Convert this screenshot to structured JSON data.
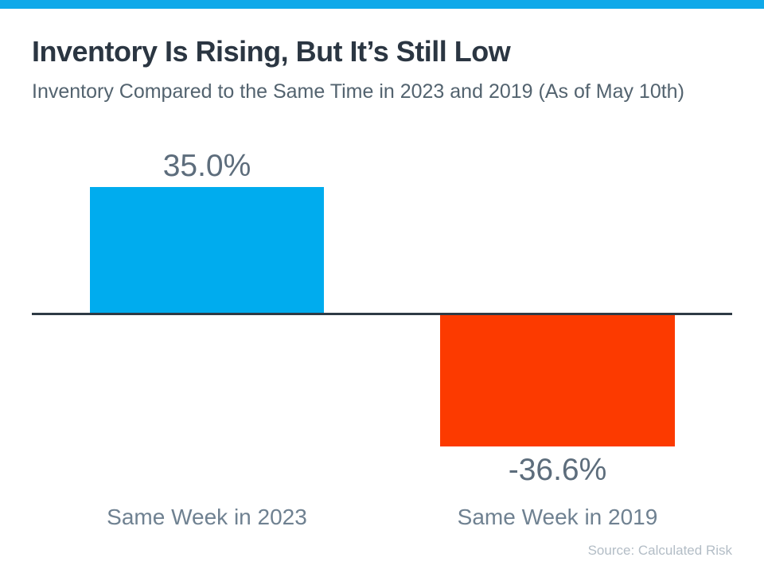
{
  "slide": {
    "accent_color": "#0fa9e9"
  },
  "chart_data": {
    "type": "bar",
    "title": "Inventory Is Rising, But It’s Still Low",
    "subtitle": "Inventory Compared to the Same Time in 2023 and 2019 (As of May 10th)",
    "categories": [
      "Same Week in 2023",
      "Same Week in 2019"
    ],
    "values": [
      35.0,
      -36.6
    ],
    "value_labels": [
      "35.0%",
      "-36.6%"
    ],
    "bar_colors": [
      "#00acee",
      "#fc3a00"
    ],
    "baseline_value": 0,
    "baseline_color": "#2e3a45",
    "ylim": [
      -40,
      40
    ],
    "grid": false,
    "legend": false,
    "source": "Source: Calculated Risk"
  }
}
